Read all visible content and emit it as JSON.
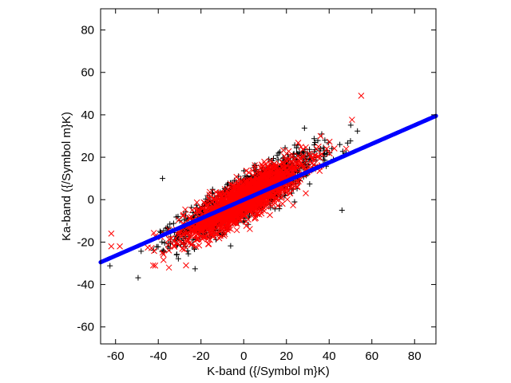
{
  "chart_data": {
    "type": "scatter",
    "title": "",
    "xlabel": "K-band ({/Symbol m}K)",
    "ylabel": "Ka-band ({/Symbol m}K)",
    "xlim": [
      -67,
      90
    ],
    "ylim": [
      -68,
      90
    ],
    "xticks": [
      -60,
      -40,
      -20,
      0,
      20,
      40,
      60,
      80
    ],
    "yticks": [
      -60,
      -40,
      -20,
      0,
      20,
      40,
      60,
      80
    ],
    "grid": false,
    "legend": "none",
    "series": [
      {
        "marker": "plus",
        "color": "#000000",
        "cluster": {
          "center": [
            2,
            2
          ],
          "spread_major": 16,
          "spread_minor": 5,
          "slope": 0.55,
          "count": 1400
        },
        "outliers": [
          [
            -38,
            10
          ],
          [
            45,
            26
          ],
          [
            48,
            22
          ],
          [
            46,
            -5
          ],
          [
            36,
            24
          ],
          [
            42,
            19
          ],
          [
            38,
            28
          ]
        ]
      },
      {
        "marker": "x",
        "color": "#ff0000",
        "cluster": {
          "center": [
            0,
            0
          ],
          "spread_major": 14,
          "spread_minor": 4.5,
          "slope": 0.55,
          "count": 1800
        },
        "outliers": [
          [
            55,
            49
          ],
          [
            36,
            30
          ],
          [
            -62,
            -16
          ],
          [
            -62,
            -22
          ],
          [
            -58,
            -22
          ],
          [
            -35,
            -32
          ],
          [
            -27,
            -31
          ],
          [
            -38,
            -25
          ],
          [
            48,
            24
          ],
          [
            35,
            25
          ]
        ]
      },
      {
        "marker": "circle",
        "color": "#0000ff",
        "fit_line": {
          "x": [
            -67,
            90
          ],
          "y": [
            -29.5,
            39.5
          ]
        }
      }
    ]
  }
}
